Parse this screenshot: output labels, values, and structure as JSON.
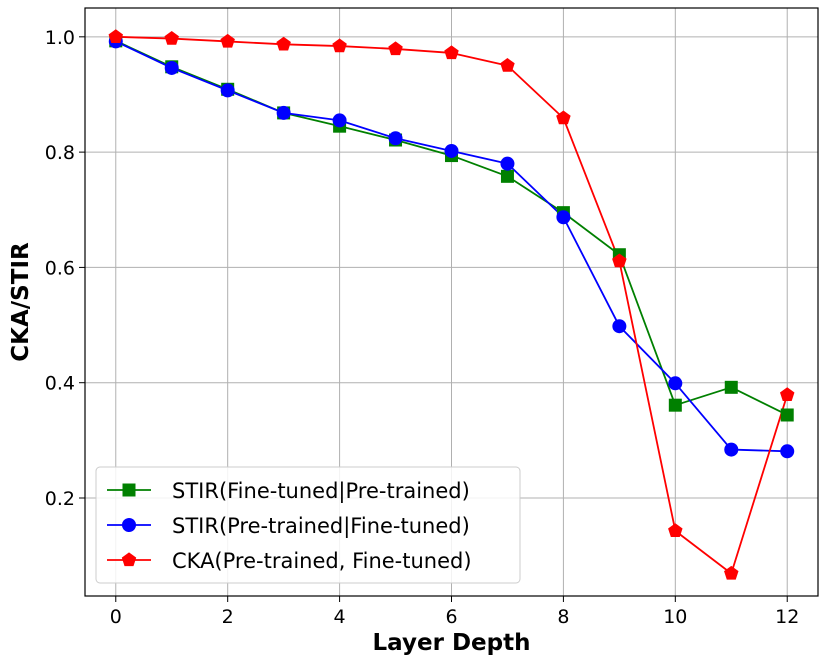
{
  "chart_data": {
    "type": "line",
    "title": "",
    "xlabel": "Layer Depth",
    "ylabel": "CKA/STIR",
    "xlim": [
      -0.55,
      12.55
    ],
    "ylim": [
      0.03,
      1.05
    ],
    "xticks": [
      0,
      2,
      4,
      6,
      8,
      10,
      12
    ],
    "yticks": [
      0.2,
      0.4,
      0.6,
      0.8,
      1.0
    ],
    "ytick_labels": [
      "0.2",
      "0.4",
      "0.6",
      "0.8",
      "1.0"
    ],
    "grid": true,
    "legend_position": "lower-left",
    "x": [
      0,
      1,
      2,
      3,
      4,
      5,
      6,
      7,
      8,
      9,
      10,
      11,
      12
    ],
    "series": [
      {
        "name": "STIR(Fine-tuned|Pre-trained)",
        "color": "#008000",
        "marker": "square",
        "values": [
          0.993,
          0.948,
          0.909,
          0.868,
          0.845,
          0.821,
          0.794,
          0.758,
          0.695,
          0.622,
          0.361,
          0.392,
          0.344
        ]
      },
      {
        "name": "STIR(Pre-trained|Fine-tuned)",
        "color": "#0000ff",
        "marker": "circle",
        "values": [
          0.992,
          0.946,
          0.907,
          0.868,
          0.855,
          0.824,
          0.802,
          0.78,
          0.687,
          0.498,
          0.399,
          0.284,
          0.281
        ]
      },
      {
        "name": "CKA(Pre-trained, Fine-tuned)",
        "color": "#ff0000",
        "marker": "pentagon",
        "values": [
          1.0,
          0.997,
          0.992,
          0.987,
          0.984,
          0.979,
          0.972,
          0.95,
          0.859,
          0.611,
          0.143,
          0.069,
          0.379
        ]
      }
    ]
  }
}
